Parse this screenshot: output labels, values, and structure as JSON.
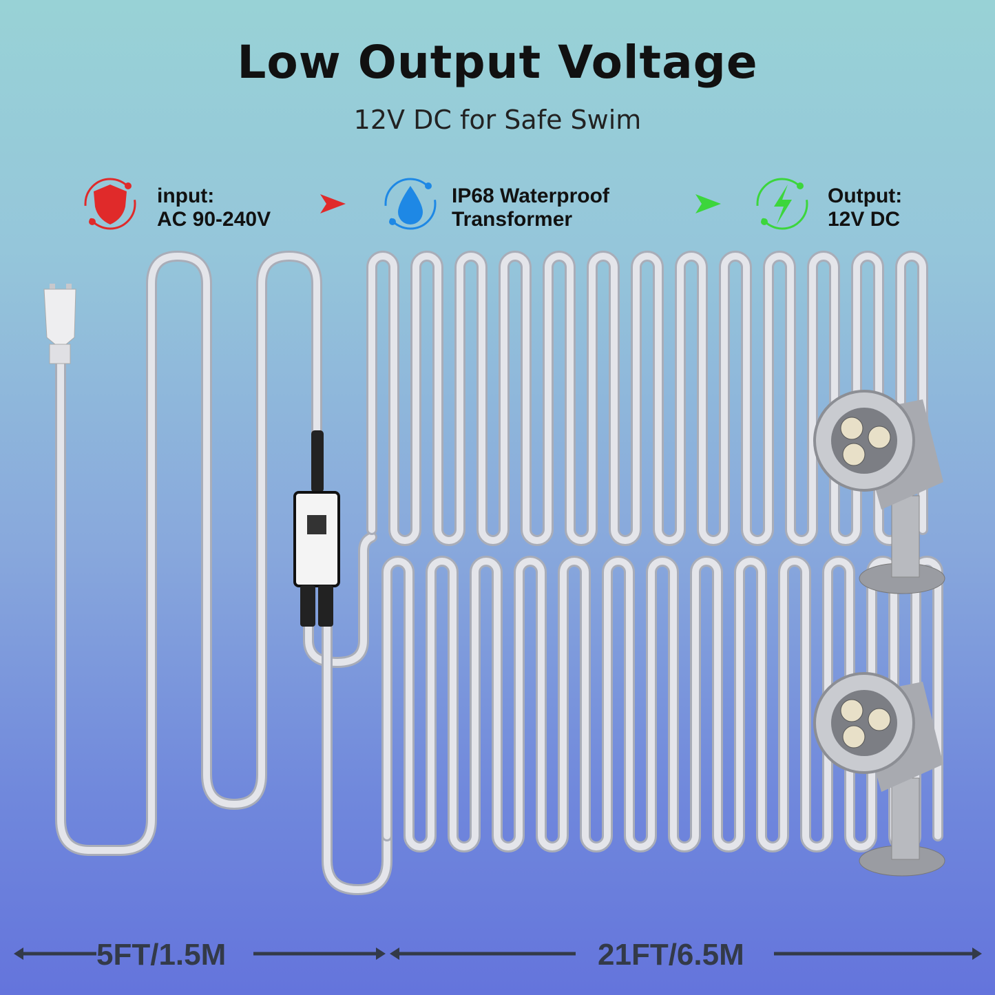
{
  "title": "Low Output Voltage",
  "subtitle": "12V DC for Safe Swim",
  "steps": [
    {
      "line1": "input:",
      "line2": "AC 90-240V",
      "icon": "shield-lock-icon",
      "color": "#e02a2a"
    },
    {
      "line1": "IP68 Waterproof",
      "line2": "Transformer",
      "icon": "water-drop-icon",
      "color": "#1e88e5"
    },
    {
      "line1": "Output:",
      "line2": "12V DC",
      "icon": "lightning-icon",
      "color": "#3cd63c"
    }
  ],
  "arrows": [
    {
      "color": "#e02a2a"
    },
    {
      "color": "#3cd63c"
    }
  ],
  "measurements": {
    "input_cable": "5FT/1.5M",
    "output_cable": "21FT/6.5M"
  }
}
